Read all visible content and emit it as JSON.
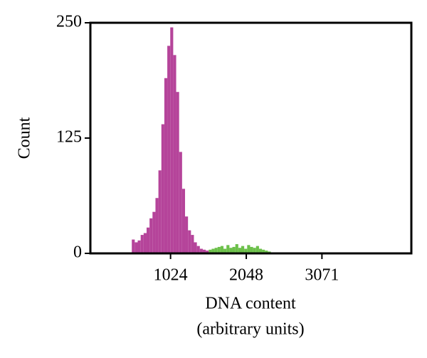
{
  "chart_data": {
    "type": "histogram",
    "ylabel": "Count",
    "xlabel": [
      "DNA content",
      "(arbitrary units)"
    ],
    "bins": [
      500,
      540,
      580,
      620,
      660,
      700,
      740,
      780,
      820,
      860,
      900,
      940,
      980,
      1020,
      1060,
      1100,
      1140,
      1180,
      1220,
      1260,
      1300,
      1340,
      1380,
      1420,
      1460,
      1500,
      1540,
      1580,
      1620,
      1660,
      1700,
      1740,
      1780,
      1820,
      1860,
      1900,
      1940,
      1980,
      2020,
      2060,
      2100,
      2140,
      2180,
      2220,
      2260,
      2300,
      2340,
      2380,
      2420,
      2460
    ],
    "series": [
      {
        "color": "#b5449a",
        "values": [
          15,
          12,
          14,
          20,
          22,
          28,
          38,
          45,
          60,
          90,
          140,
          190,
          225,
          245,
          215,
          175,
          110,
          70,
          40,
          25,
          20,
          12,
          8,
          5,
          4,
          3,
          0,
          0,
          0,
          0,
          0,
          0,
          0,
          0,
          0,
          0,
          0,
          0,
          0,
          0,
          0,
          0,
          0,
          0,
          0,
          0,
          0,
          0,
          0
        ]
      },
      {
        "color": "#6cc04a",
        "values": [
          0,
          0,
          0,
          0,
          0,
          0,
          0,
          0,
          0,
          0,
          0,
          0,
          0,
          0,
          0,
          0,
          0,
          0,
          0,
          0,
          0,
          0,
          0,
          0,
          0,
          0,
          4,
          5,
          6,
          7,
          8,
          5,
          9,
          6,
          7,
          10,
          6,
          8,
          5,
          9,
          7,
          6,
          8,
          5,
          4,
          3,
          2,
          1,
          1
        ]
      }
    ],
    "xlim": [
      -60,
      4280
    ],
    "ylim": [
      0,
      250
    ],
    "xticks": [
      1024,
      2048,
      3071
    ],
    "yticks": [
      0,
      125,
      250
    ]
  }
}
